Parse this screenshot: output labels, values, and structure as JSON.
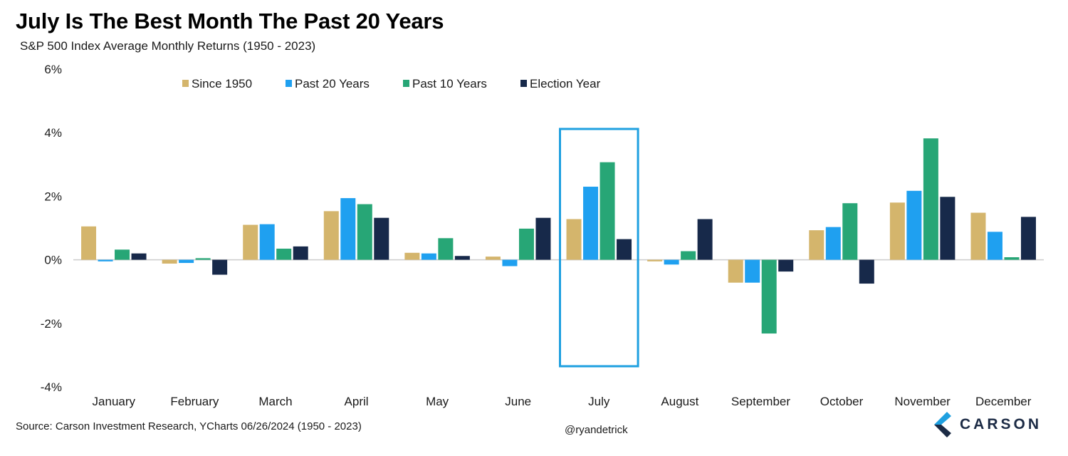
{
  "header": {
    "title": "July Is The Best Month The Past 20 Years",
    "subtitle": "S&P 500 Index Average Monthly Returns (1950 - 2023)"
  },
  "footer": {
    "source": "Source: Carson Investment Research, YCharts 06/26/2024 (1950 - 2023)",
    "handle": "@ryandetrick",
    "logo_text": "CARSON"
  },
  "colors": {
    "since_1950": "#d4b56c",
    "past_20": "#1fa0f0",
    "past_10": "#27a676",
    "election": "#17294a",
    "highlight": "#1fa0e0",
    "axis": "#cccccc"
  },
  "chart_data": {
    "type": "bar",
    "title": "July Is The Best Month The Past 20 Years",
    "subtitle": "S&P 500 Index Average Monthly Returns (1950 - 2023)",
    "categories": [
      "January",
      "February",
      "March",
      "April",
      "May",
      "June",
      "July",
      "August",
      "September",
      "October",
      "November",
      "December"
    ],
    "series": [
      {
        "name": "Since 1950",
        "color": "#d4b56c",
        "values": [
          1.05,
          -0.12,
          1.1,
          1.53,
          0.22,
          0.1,
          1.28,
          -0.05,
          -0.72,
          0.93,
          1.8,
          1.48
        ]
      },
      {
        "name": "Past 20 Years",
        "color": "#1fa0f0",
        "values": [
          -0.05,
          -0.1,
          1.12,
          1.94,
          0.2,
          -0.2,
          2.3,
          -0.15,
          -0.72,
          1.03,
          2.17,
          0.88
        ]
      },
      {
        "name": "Past 10 Years",
        "color": "#27a676",
        "values": [
          0.32,
          0.05,
          0.35,
          1.75,
          0.68,
          0.98,
          3.07,
          0.27,
          -2.32,
          1.78,
          3.82,
          0.08
        ]
      },
      {
        "name": "Election Year",
        "color": "#17294a",
        "values": [
          0.2,
          -0.47,
          0.42,
          1.32,
          0.12,
          1.32,
          0.65,
          1.28,
          -0.37,
          -0.75,
          1.98,
          1.35
        ]
      }
    ],
    "ylim": [
      -4,
      6
    ],
    "yticks": [
      -4,
      -2,
      0,
      2,
      4,
      6
    ],
    "ytick_labels": [
      "-4%",
      "-2%",
      "0%",
      "2%",
      "4%",
      "6%"
    ],
    "grid": false,
    "legend": "top",
    "highlight_category": "July"
  }
}
